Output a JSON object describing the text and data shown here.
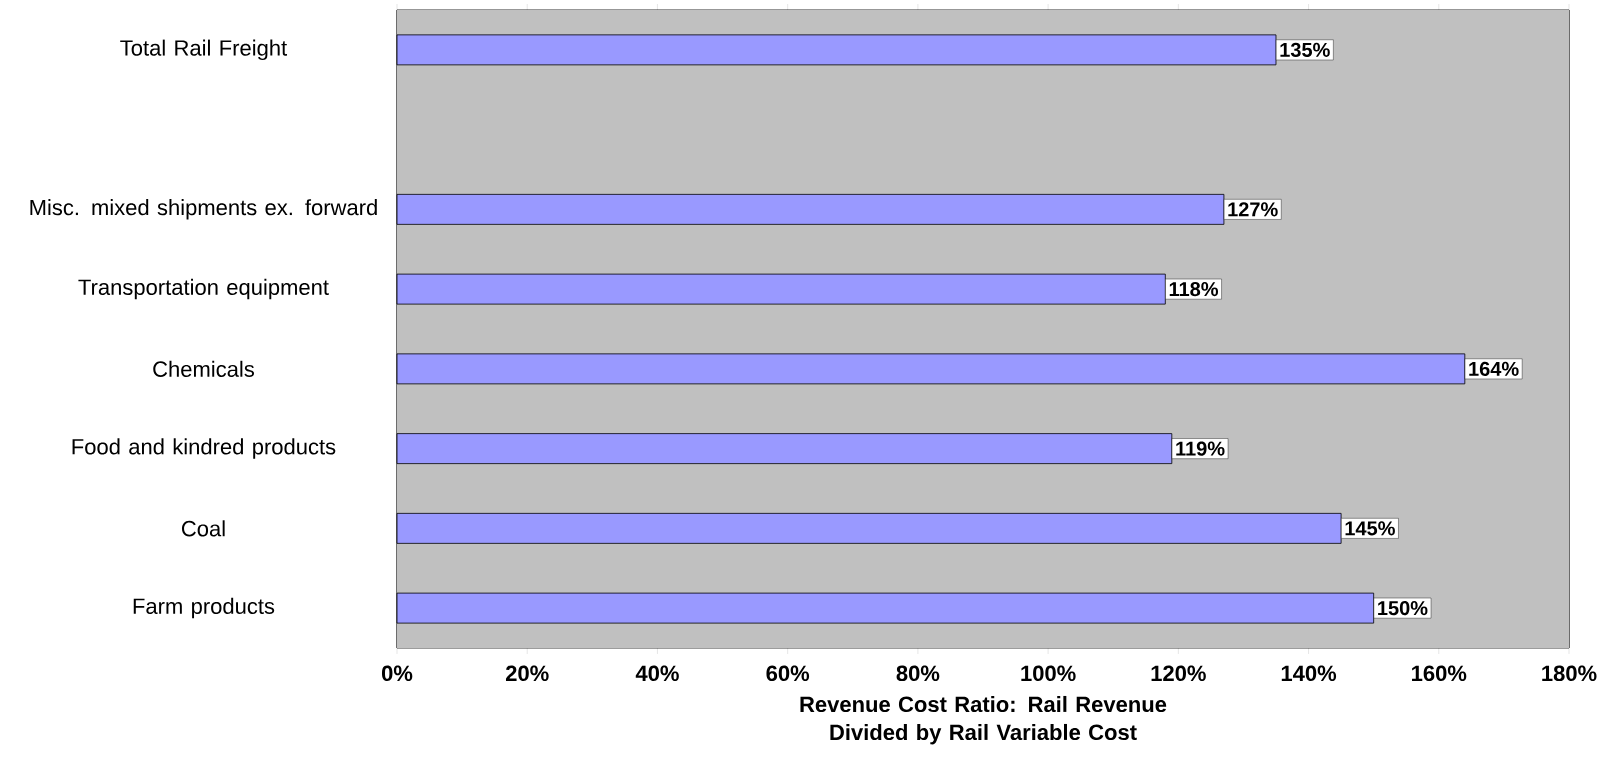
{
  "chart_data": {
    "type": "bar",
    "orientation": "horizontal",
    "categories": [
      "Total Rail Freight",
      null,
      "Misc. mixed shipments ex. forward",
      "Transportation equipment",
      "Chemicals",
      "Food and kindred products",
      "Coal",
      "Farm products"
    ],
    "values": [
      135,
      null,
      127,
      118,
      164,
      119,
      145,
      150
    ],
    "value_labels": [
      "135%",
      null,
      "127%",
      "118%",
      "164%",
      "119%",
      "145%",
      "150%"
    ],
    "color": "#9999ff",
    "xlabel": "Revenue Cost Ratio: Rail Revenue Divided by Rail Variable Cost",
    "xlim": [
      0,
      180
    ],
    "xticks": [
      {
        "value": 0,
        "label": "0%"
      },
      {
        "value": 20,
        "label": "20%"
      },
      {
        "value": 40,
        "label": "40%"
      },
      {
        "value": 60,
        "label": "60%"
      },
      {
        "value": 80,
        "label": "80%"
      },
      {
        "value": 100,
        "label": "100%"
      },
      {
        "value": 120,
        "label": "120%"
      },
      {
        "value": 140,
        "label": "140%"
      },
      {
        "value": 160,
        "label": "160%"
      },
      {
        "value": 180,
        "label": "180%"
      }
    ],
    "grid": "x"
  }
}
